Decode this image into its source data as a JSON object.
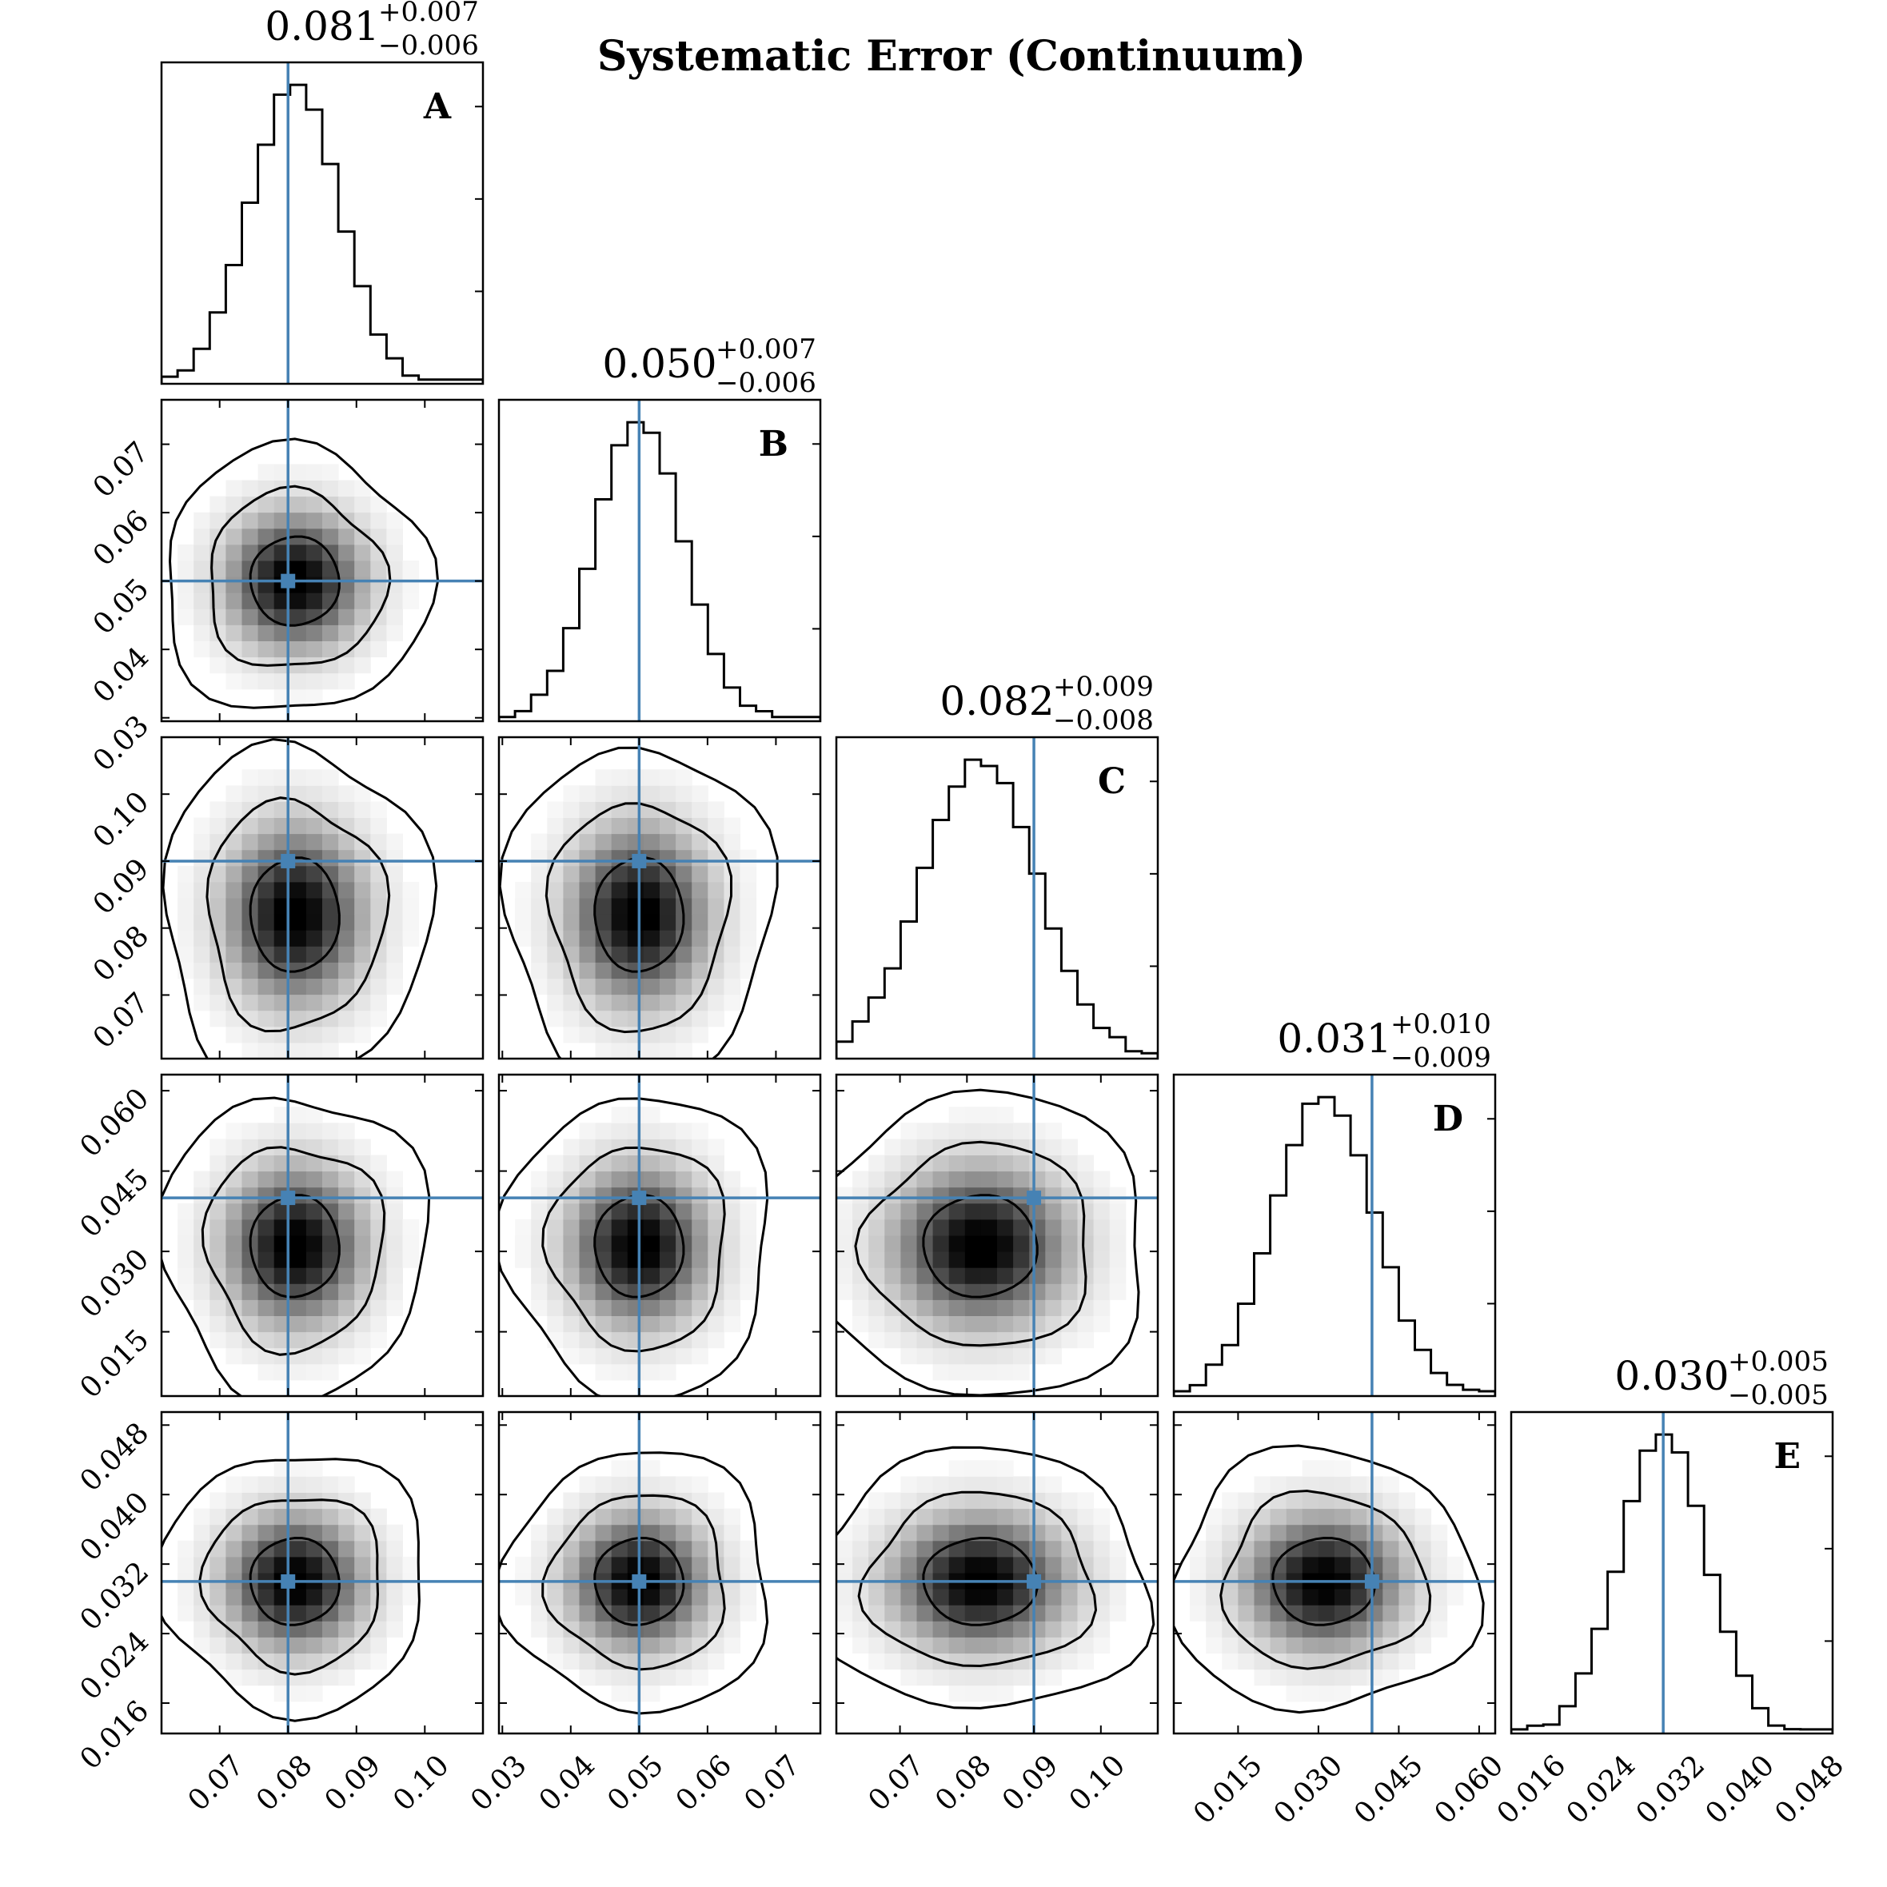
{
  "title": "Systematic Error (Continuum)",
  "truth_color": "#4682b4",
  "chart_data": {
    "type": "corner",
    "parameters": [
      {
        "label": "A",
        "median": "0.081",
        "plus": "+0.007",
        "minus": "−0.006",
        "mean": 0.081,
        "sigma": 0.0065,
        "truth": 0.08,
        "range": [
          0.0615,
          0.1085
        ],
        "ticks": [
          "0.07",
          "0.08",
          "0.09",
          "0.10"
        ]
      },
      {
        "label": "B",
        "median": "0.050",
        "plus": "+0.007",
        "minus": "−0.006",
        "mean": 0.05,
        "sigma": 0.0065,
        "truth": 0.05,
        "range": [
          0.0295,
          0.0765
        ],
        "ticks": [
          "0.03",
          "0.04",
          "0.05",
          "0.06",
          "0.07"
        ]
      },
      {
        "label": "C",
        "median": "0.082",
        "plus": "+0.009",
        "minus": "−0.008",
        "mean": 0.082,
        "sigma": 0.0085,
        "truth": 0.09,
        "range": [
          0.0605,
          0.1085
        ],
        "ticks": [
          "0.07",
          "0.08",
          "0.09",
          "0.10"
        ]
      },
      {
        "label": "D",
        "median": "0.031",
        "plus": "+0.010",
        "minus": "−0.009",
        "mean": 0.031,
        "sigma": 0.0095,
        "truth": 0.04,
        "range": [
          0.003,
          0.063
        ],
        "ticks": [
          "0.015",
          "0.030",
          "0.045",
          "0.060"
        ]
      },
      {
        "label": "E",
        "median": "0.030",
        "plus": "+0.005",
        "minus": "−0.005",
        "mean": 0.03,
        "sigma": 0.005,
        "truth": 0.03,
        "range": [
          0.0125,
          0.0495
        ],
        "ticks": [
          "0.016",
          "0.024",
          "0.032",
          "0.040",
          "0.048"
        ]
      }
    ],
    "histograms": true,
    "contours": true,
    "truth_lines": true
  }
}
